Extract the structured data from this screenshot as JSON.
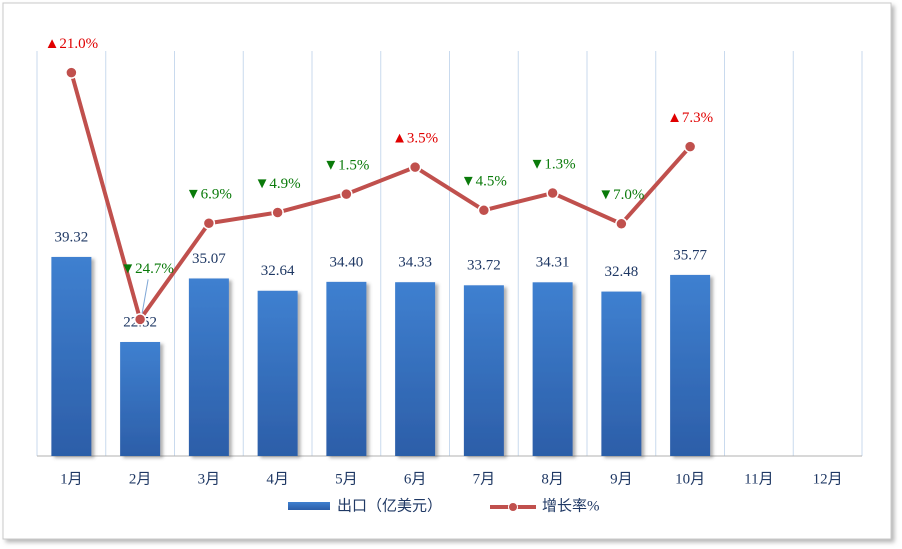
{
  "chart_data": {
    "type": "combo",
    "categories": [
      "1月",
      "2月",
      "3月",
      "4月",
      "5月",
      "6月",
      "7月",
      "8月",
      "9月",
      "10月",
      "11月",
      "12月"
    ],
    "series": [
      {
        "name": "出口（亿美元）",
        "type": "bar",
        "axis": "y",
        "color": "#3b76c4",
        "values": [
          39.32,
          22.52,
          35.07,
          32.64,
          34.4,
          34.33,
          33.72,
          34.31,
          32.48,
          35.77,
          null,
          null
        ],
        "value_labels": [
          "39.32",
          "22.52",
          "35.07",
          "32.64",
          "34.40",
          "34.33",
          "33.72",
          "34.31",
          "32.48",
          "35.77",
          null,
          null
        ]
      },
      {
        "name": "增长率%",
        "type": "line",
        "axis": "y2",
        "color": "#c0504d",
        "values": [
          21.0,
          -24.7,
          -6.9,
          -4.9,
          -1.5,
          3.5,
          -4.5,
          -1.3,
          -7.0,
          7.3,
          null,
          null
        ],
        "value_labels": [
          "▲21.0%",
          "▼24.7%",
          "▼6.9%",
          "▼4.9%",
          "▼1.5%",
          "▲3.5%",
          "▼4.5%",
          "▼1.3%",
          "▼7.0%",
          "▲7.3%",
          null,
          null
        ]
      }
    ],
    "ylim": [
      0,
      80
    ],
    "y2lim": [
      -50,
      25
    ],
    "x_grid": true
  }
}
